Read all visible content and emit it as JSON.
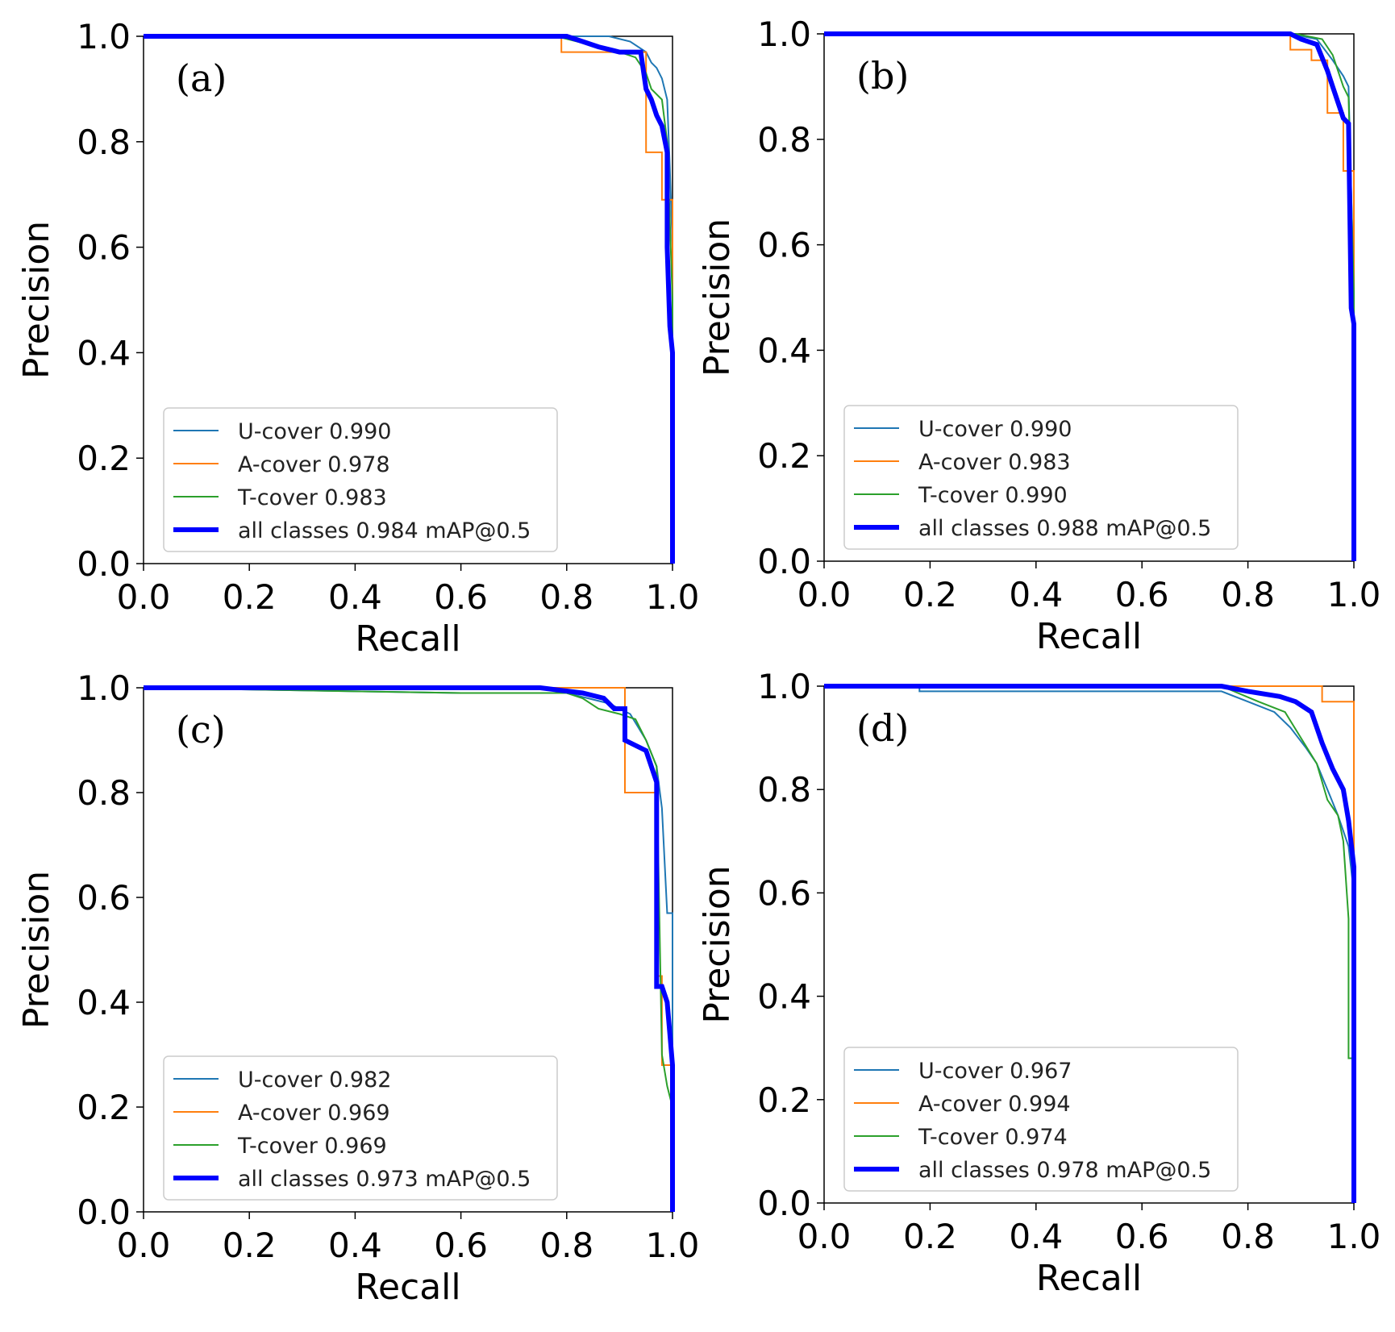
{
  "chart_data": [
    {
      "type": "line",
      "panel_label": "(a)",
      "xlabel": "Recall",
      "ylabel": "Precision",
      "xlim": [
        0,
        1
      ],
      "ylim": [
        0,
        1
      ],
      "xticks": [
        "0.0",
        "0.2",
        "0.4",
        "0.6",
        "0.8",
        "1.0"
      ],
      "yticks": [
        "0.0",
        "0.2",
        "0.4",
        "0.6",
        "0.8",
        "1.0"
      ],
      "grid": false,
      "legend_position": "lower-left",
      "series": [
        {
          "name": "U-cover 0.990",
          "color": "#1f77b4",
          "width": 2,
          "x": [
            0,
            0.74,
            0.85,
            0.88,
            0.92,
            0.95,
            0.96,
            0.97,
            0.98,
            0.99,
            0.995,
            1.0,
            1.0
          ],
          "y": [
            1.0,
            1.0,
            1.0,
            1.0,
            0.99,
            0.97,
            0.95,
            0.94,
            0.92,
            0.88,
            0.75,
            0.6,
            0.0
          ]
        },
        {
          "name": "A-cover 0.978",
          "color": "#ff7f0e",
          "width": 2,
          "x": [
            0,
            0.79,
            0.79,
            0.95,
            0.95,
            0.98,
            0.98,
            1.0,
            1.0
          ],
          "y": [
            1.0,
            1.0,
            0.97,
            0.97,
            0.78,
            0.78,
            0.69,
            0.69,
            0.0
          ]
        },
        {
          "name": "T-cover 0.983",
          "color": "#2ca02c",
          "width": 2,
          "x": [
            0,
            0.78,
            0.86,
            0.9,
            0.93,
            0.95,
            0.96,
            0.97,
            0.98,
            0.99,
            1.0,
            1.0
          ],
          "y": [
            1.0,
            1.0,
            0.98,
            0.97,
            0.96,
            0.93,
            0.9,
            0.89,
            0.88,
            0.8,
            0.5,
            0.0
          ]
        },
        {
          "name": "all classes 0.984 mAP@0.5",
          "color": "#0000ff",
          "width": 6,
          "x": [
            0,
            0.8,
            0.83,
            0.86,
            0.9,
            0.94,
            0.95,
            0.96,
            0.97,
            0.98,
            0.99,
            0.99,
            0.995,
            1.0,
            1.0
          ],
          "y": [
            1.0,
            1.0,
            0.99,
            0.98,
            0.97,
            0.97,
            0.9,
            0.88,
            0.85,
            0.83,
            0.78,
            0.6,
            0.45,
            0.4,
            0.0
          ]
        }
      ]
    },
    {
      "type": "line",
      "panel_label": "(b)",
      "xlabel": "Recall",
      "ylabel": "Precision",
      "xlim": [
        0,
        1
      ],
      "ylim": [
        0,
        1
      ],
      "xticks": [
        "0.0",
        "0.2",
        "0.4",
        "0.6",
        "0.8",
        "1.0"
      ],
      "yticks": [
        "0.0",
        "0.2",
        "0.4",
        "0.6",
        "0.8",
        "1.0"
      ],
      "grid": false,
      "legend_position": "lower-left",
      "series": [
        {
          "name": "U-cover 0.990",
          "color": "#1f77b4",
          "width": 2,
          "x": [
            0,
            0.88,
            0.93,
            0.96,
            0.98,
            0.99,
            1.0,
            1.0
          ],
          "y": [
            1.0,
            1.0,
            0.99,
            0.95,
            0.92,
            0.9,
            0.5,
            0.0
          ]
        },
        {
          "name": "A-cover 0.983",
          "color": "#ff7f0e",
          "width": 2,
          "x": [
            0,
            0.88,
            0.88,
            0.92,
            0.92,
            0.95,
            0.95,
            0.98,
            0.98,
            1.0,
            1.0
          ],
          "y": [
            1.0,
            1.0,
            0.97,
            0.97,
            0.95,
            0.95,
            0.85,
            0.85,
            0.74,
            0.74,
            0.0
          ]
        },
        {
          "name": "T-cover 0.990",
          "color": "#2ca02c",
          "width": 2,
          "x": [
            0,
            0.89,
            0.94,
            0.96,
            0.98,
            0.99,
            1.0,
            1.0
          ],
          "y": [
            1.0,
            1.0,
            0.99,
            0.96,
            0.9,
            0.88,
            0.51,
            0.0
          ]
        },
        {
          "name": "all classes 0.988 mAP@0.5",
          "color": "#0000ff",
          "width": 6,
          "x": [
            0,
            0.88,
            0.9,
            0.93,
            0.95,
            0.96,
            0.97,
            0.98,
            0.99,
            0.995,
            1.0,
            1.0
          ],
          "y": [
            1.0,
            1.0,
            0.99,
            0.98,
            0.93,
            0.9,
            0.87,
            0.84,
            0.83,
            0.48,
            0.45,
            0.0
          ]
        }
      ]
    },
    {
      "type": "line",
      "panel_label": "(c)",
      "xlabel": "Recall",
      "ylabel": "Precision",
      "xlim": [
        0,
        1
      ],
      "ylim": [
        0,
        1
      ],
      "xticks": [
        "0.0",
        "0.2",
        "0.4",
        "0.6",
        "0.8",
        "1.0"
      ],
      "yticks": [
        "0.0",
        "0.2",
        "0.4",
        "0.6",
        "0.8",
        "1.0"
      ],
      "grid": false,
      "legend_position": "lower-left",
      "series": [
        {
          "name": "U-cover 0.982",
          "color": "#1f77b4",
          "width": 2,
          "x": [
            0,
            0.6,
            0.8,
            0.88,
            0.92,
            0.95,
            0.97,
            0.98,
            0.99,
            1.0,
            1.0
          ],
          "y": [
            1.0,
            0.99,
            0.99,
            0.97,
            0.95,
            0.9,
            0.85,
            0.77,
            0.57,
            0.57,
            0.0
          ]
        },
        {
          "name": "A-cover 0.969",
          "color": "#ff7f0e",
          "width": 2,
          "x": [
            0,
            0.91,
            0.91,
            0.97,
            0.97,
            0.98,
            0.98,
            1.0,
            1.0
          ],
          "y": [
            1.0,
            1.0,
            0.8,
            0.8,
            0.45,
            0.45,
            0.28,
            0.28,
            0.0
          ]
        },
        {
          "name": "T-cover 0.969",
          "color": "#2ca02c",
          "width": 2,
          "x": [
            0,
            0.6,
            0.8,
            0.83,
            0.86,
            0.9,
            0.93,
            0.95,
            0.97,
            0.98,
            0.99,
            0.995,
            1.0,
            1.0
          ],
          "y": [
            1.0,
            0.99,
            0.99,
            0.98,
            0.96,
            0.95,
            0.94,
            0.9,
            0.85,
            0.3,
            0.24,
            0.22,
            0.2,
            0.0
          ]
        },
        {
          "name": "all classes 0.973 mAP@0.5",
          "color": "#0000ff",
          "width": 6,
          "x": [
            0,
            0.75,
            0.83,
            0.87,
            0.89,
            0.91,
            0.91,
            0.95,
            0.97,
            0.97,
            0.98,
            0.99,
            1.0,
            1.0
          ],
          "y": [
            1.0,
            1.0,
            0.99,
            0.98,
            0.96,
            0.96,
            0.9,
            0.88,
            0.82,
            0.43,
            0.43,
            0.4,
            0.28,
            0.0
          ]
        }
      ]
    },
    {
      "type": "line",
      "panel_label": "(d)",
      "xlabel": "Recall",
      "ylabel": "Precision",
      "xlim": [
        0,
        1
      ],
      "ylim": [
        0,
        1
      ],
      "xticks": [
        "0.0",
        "0.2",
        "0.4",
        "0.6",
        "0.8",
        "1.0"
      ],
      "yticks": [
        "0.0",
        "0.2",
        "0.4",
        "0.6",
        "0.8",
        "1.0"
      ],
      "grid": false,
      "legend_position": "lower-left",
      "series": [
        {
          "name": "U-cover 0.967",
          "color": "#1f77b4",
          "width": 2,
          "x": [
            0,
            0.18,
            0.18,
            0.75,
            0.8,
            0.85,
            0.88,
            0.91,
            0.93,
            0.95,
            0.97,
            0.99,
            1.0,
            1.0
          ],
          "y": [
            1.0,
            1.0,
            0.99,
            0.99,
            0.97,
            0.95,
            0.92,
            0.88,
            0.85,
            0.8,
            0.75,
            0.69,
            0.6,
            0.0
          ]
        },
        {
          "name": "A-cover 0.994",
          "color": "#ff7f0e",
          "width": 2,
          "x": [
            0,
            0.94,
            0.94,
            1.0,
            1.0
          ],
          "y": [
            1.0,
            1.0,
            0.97,
            0.97,
            0.0
          ]
        },
        {
          "name": "T-cover 0.974",
          "color": "#2ca02c",
          "width": 2,
          "x": [
            0,
            0.75,
            0.82,
            0.87,
            0.9,
            0.93,
            0.95,
            0.97,
            0.98,
            0.99,
            0.99,
            1.0,
            1.0
          ],
          "y": [
            1.0,
            1.0,
            0.97,
            0.95,
            0.9,
            0.85,
            0.78,
            0.75,
            0.7,
            0.55,
            0.28,
            0.28,
            0.0
          ]
        },
        {
          "name": "all classes 0.978 mAP@0.5",
          "color": "#0000ff",
          "width": 6,
          "x": [
            0,
            0.75,
            0.8,
            0.86,
            0.89,
            0.92,
            0.94,
            0.96,
            0.98,
            0.99,
            1.0,
            1.0
          ],
          "y": [
            1.0,
            1.0,
            0.99,
            0.98,
            0.97,
            0.95,
            0.89,
            0.84,
            0.8,
            0.74,
            0.65,
            0.0
          ]
        }
      ]
    }
  ]
}
